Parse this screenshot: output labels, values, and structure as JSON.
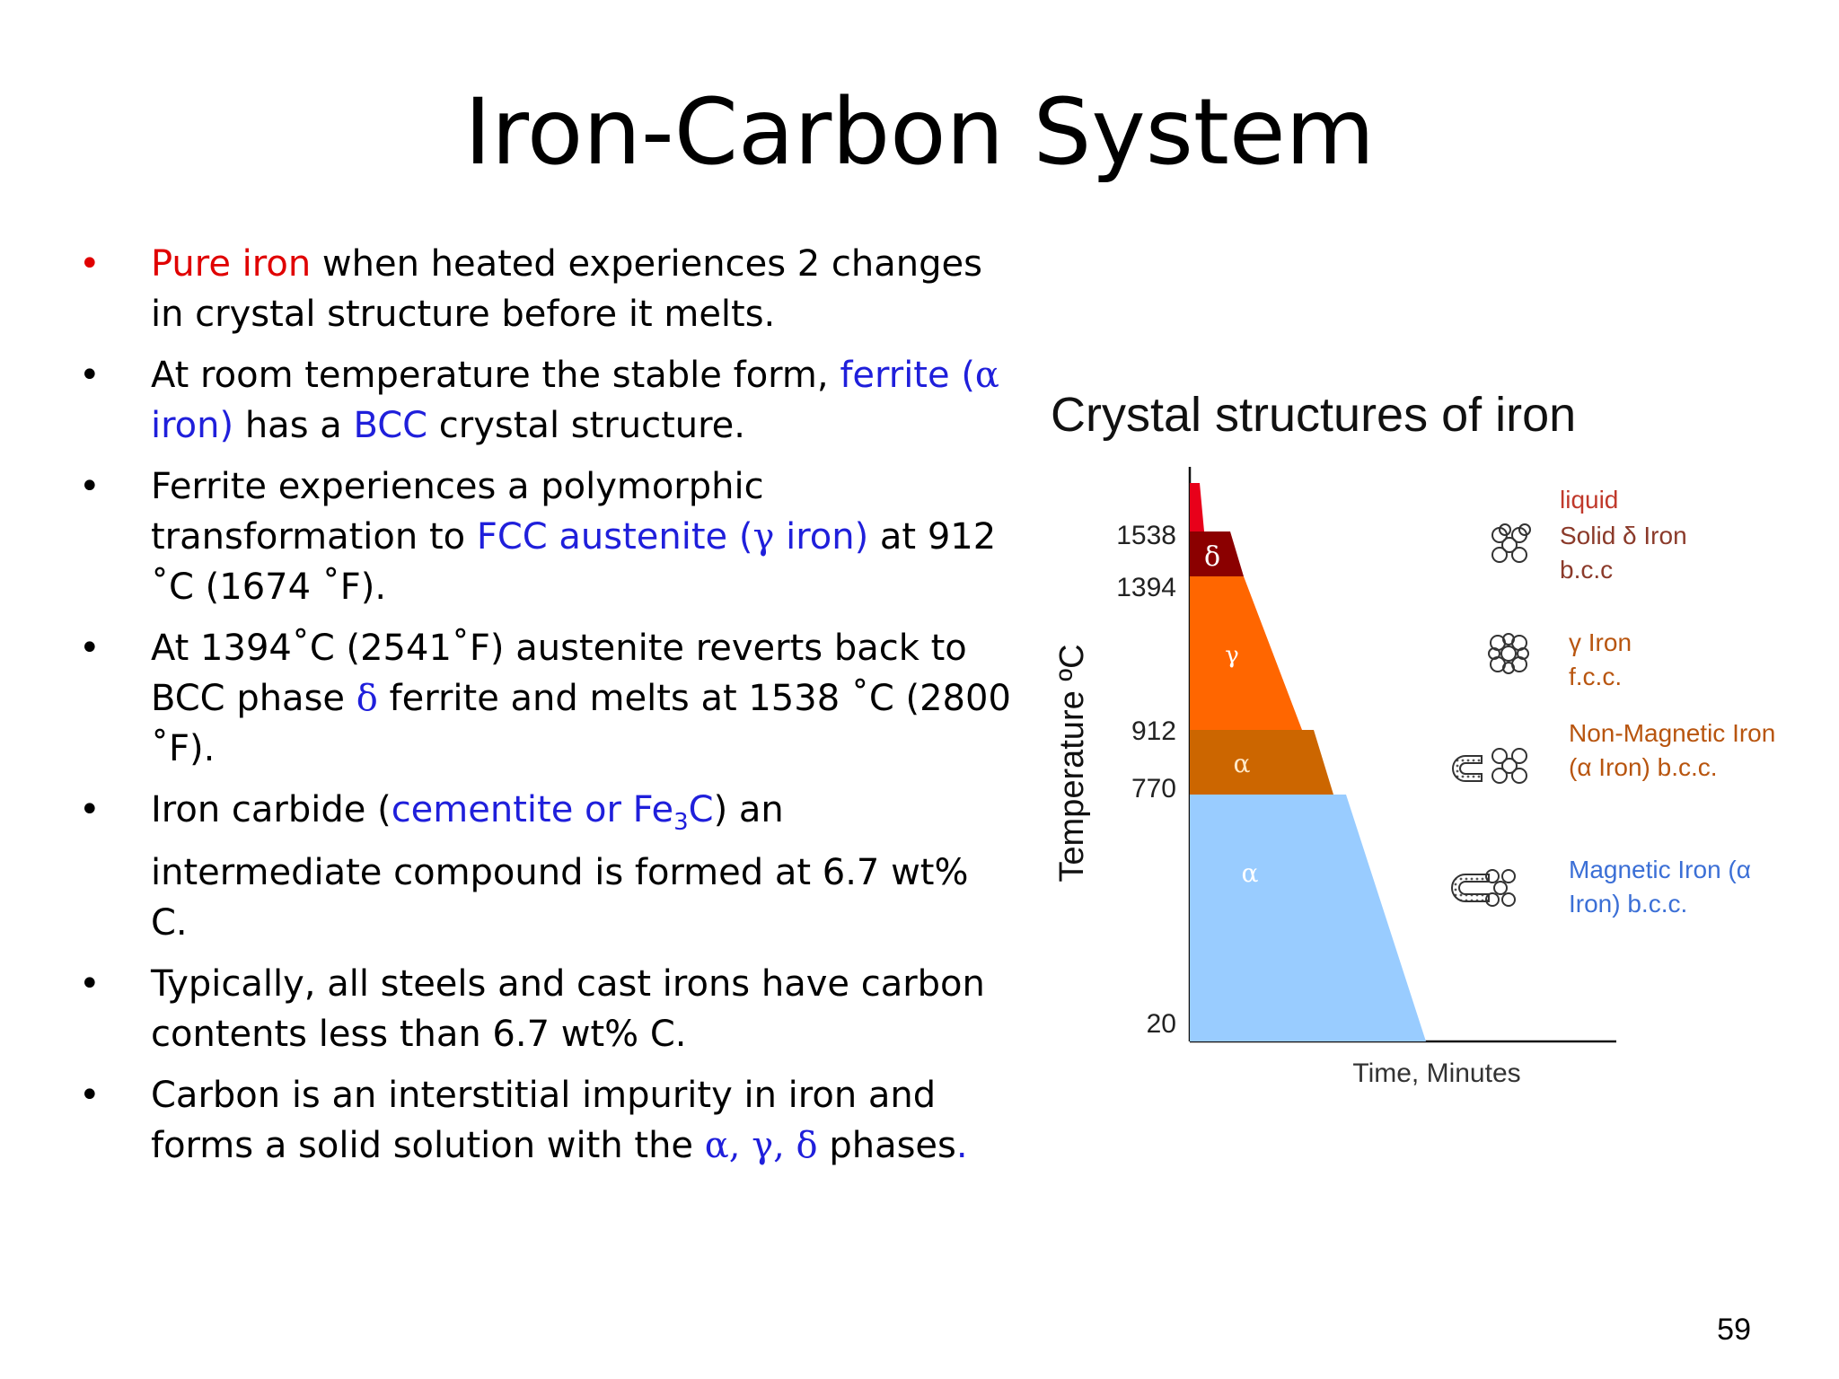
{
  "slide": {
    "title": "Iron-Carbon System",
    "page_number": "59"
  },
  "bullets": [
    {
      "parts": [
        {
          "text": "Pure iron",
          "color": "red"
        },
        {
          "text": " when heated experiences 2 changes in crystal structure before it melts."
        }
      ]
    },
    {
      "parts": [
        {
          "text": " At room temperature the stable form, "
        },
        {
          "text": "ferrite (",
          "color": "blue"
        },
        {
          "text": "α",
          "color": "blue",
          "serif": true
        },
        {
          "text": " iron)",
          "color": "blue"
        },
        {
          "text": " has a "
        },
        {
          "text": "BCC",
          "color": "blue"
        },
        {
          "text": " crystal structure."
        }
      ]
    },
    {
      "parts": [
        {
          "text": "Ferrite experiences a polymorphic transformation to "
        },
        {
          "text": "FCC austenite (",
          "color": "blue"
        },
        {
          "text": "γ",
          "color": "blue",
          "serif": true
        },
        {
          "text": " iron)",
          "color": "blue"
        },
        {
          "text": " at 912 ˚C (1674 ˚F)."
        }
      ]
    },
    {
      "parts": [
        {
          "text": "At 1394˚C (2541˚F) austenite reverts back to BCC phase "
        },
        {
          "text": "δ",
          "color": "blue",
          "serif": true
        },
        {
          "text": " ferrite and melts at 1538 ˚C (2800 ˚F)."
        }
      ]
    },
    {
      "parts": [
        {
          "text": "Iron carbide ("
        },
        {
          "text": "cementite or Fe",
          "color": "blue"
        },
        {
          "text": "3",
          "color": "blue",
          "sub": true
        },
        {
          "text": "C",
          "color": "blue"
        },
        {
          "text": ") an intermediate compound is formed at 6.7 wt% C."
        }
      ]
    },
    {
      "parts": [
        {
          "text": "Typically, all steels and cast irons have carbon contents less than 6.7 wt% C."
        }
      ]
    },
    {
      "parts": [
        {
          "text": "Carbon is an interstitial impurity in iron and forms a solid solution with the "
        },
        {
          "text": "α, γ, δ",
          "color": "blue",
          "serif": true
        },
        {
          "text": " phases"
        },
        {
          "text": ".",
          "color": "blue"
        }
      ]
    }
  ],
  "colors": {
    "red": "#e00000",
    "blue": "#1f1fdb",
    "liquid": "#e8001a",
    "delta": "#8b0000",
    "gamma": "#ff6600",
    "alpha_nonmagnetic": "#cc6600",
    "alpha_magnetic": "#99ccff",
    "label_red": "#c0392b",
    "label_brown": "#8b3a2a",
    "label_orange": "#b8550f",
    "label_blue": "#3b6fd6"
  },
  "chart_data": {
    "type": "area",
    "title": "Crystal structures of iron",
    "xlabel": "Time, Minutes",
    "ylabel": "Temperature ºC",
    "y_ticks": [
      "1538",
      "1394",
      "912",
      "770",
      "20"
    ],
    "bands": [
      {
        "phase_symbol": "",
        "label": "liquid",
        "color_key": "liquid"
      },
      {
        "phase_symbol": "δ",
        "label": "Solid δ Iron",
        "sublabel": "b.c.c",
        "color_key": "delta",
        "icon": "bcc-cube-icon"
      },
      {
        "phase_symbol": "γ",
        "label": "γ Iron",
        "sublabel": "f.c.c.",
        "color_key": "gamma",
        "icon": "fcc-cube-icon"
      },
      {
        "phase_symbol": "α",
        "label": "Non-Magnetic Iron",
        "sublabel": "(α Iron) b.c.c.",
        "color_key": "alpha_nonmagnetic",
        "icon": "bcc-cube-icon"
      },
      {
        "phase_symbol": "α",
        "label": "Magnetic Iron (α",
        "sublabel": "Iron) b.c.c.",
        "color_key": "alpha_magnetic",
        "icon": "magnet-bcc-icon"
      }
    ]
  }
}
